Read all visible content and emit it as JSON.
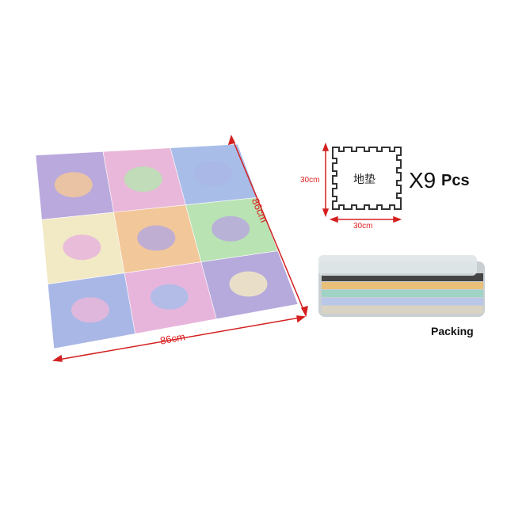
{
  "mat": {
    "tile_colors": [
      "#b9a9dd",
      "#e9b7d9",
      "#a9bde9",
      "#f2e9c5",
      "#f2c79a",
      "#b9e3b3",
      "#a9b7e6",
      "#e7b5dc",
      "#b6a9dc"
    ],
    "width_label": "86cm",
    "height_label": "86cm",
    "dimension_color": "#d42020"
  },
  "single_tile": {
    "text": "地垫",
    "width_label": "30cm",
    "height_label": "30cm"
  },
  "quantity": {
    "multiplier": "X9",
    "unit": "Pcs"
  },
  "packing": {
    "label": "Packing"
  }
}
